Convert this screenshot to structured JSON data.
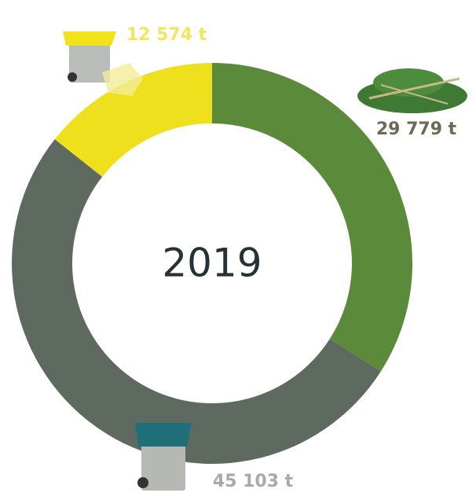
{
  "chart_data": {
    "type": "donut",
    "title": "2019",
    "values": [
      29779,
      45103,
      12574
    ],
    "value_labels": [
      "29 779 t",
      "45 103 t",
      "12 574 t"
    ],
    "colors": [
      "#5b8a3b",
      "#5e6a5f",
      "#efe01e"
    ]
  }
}
